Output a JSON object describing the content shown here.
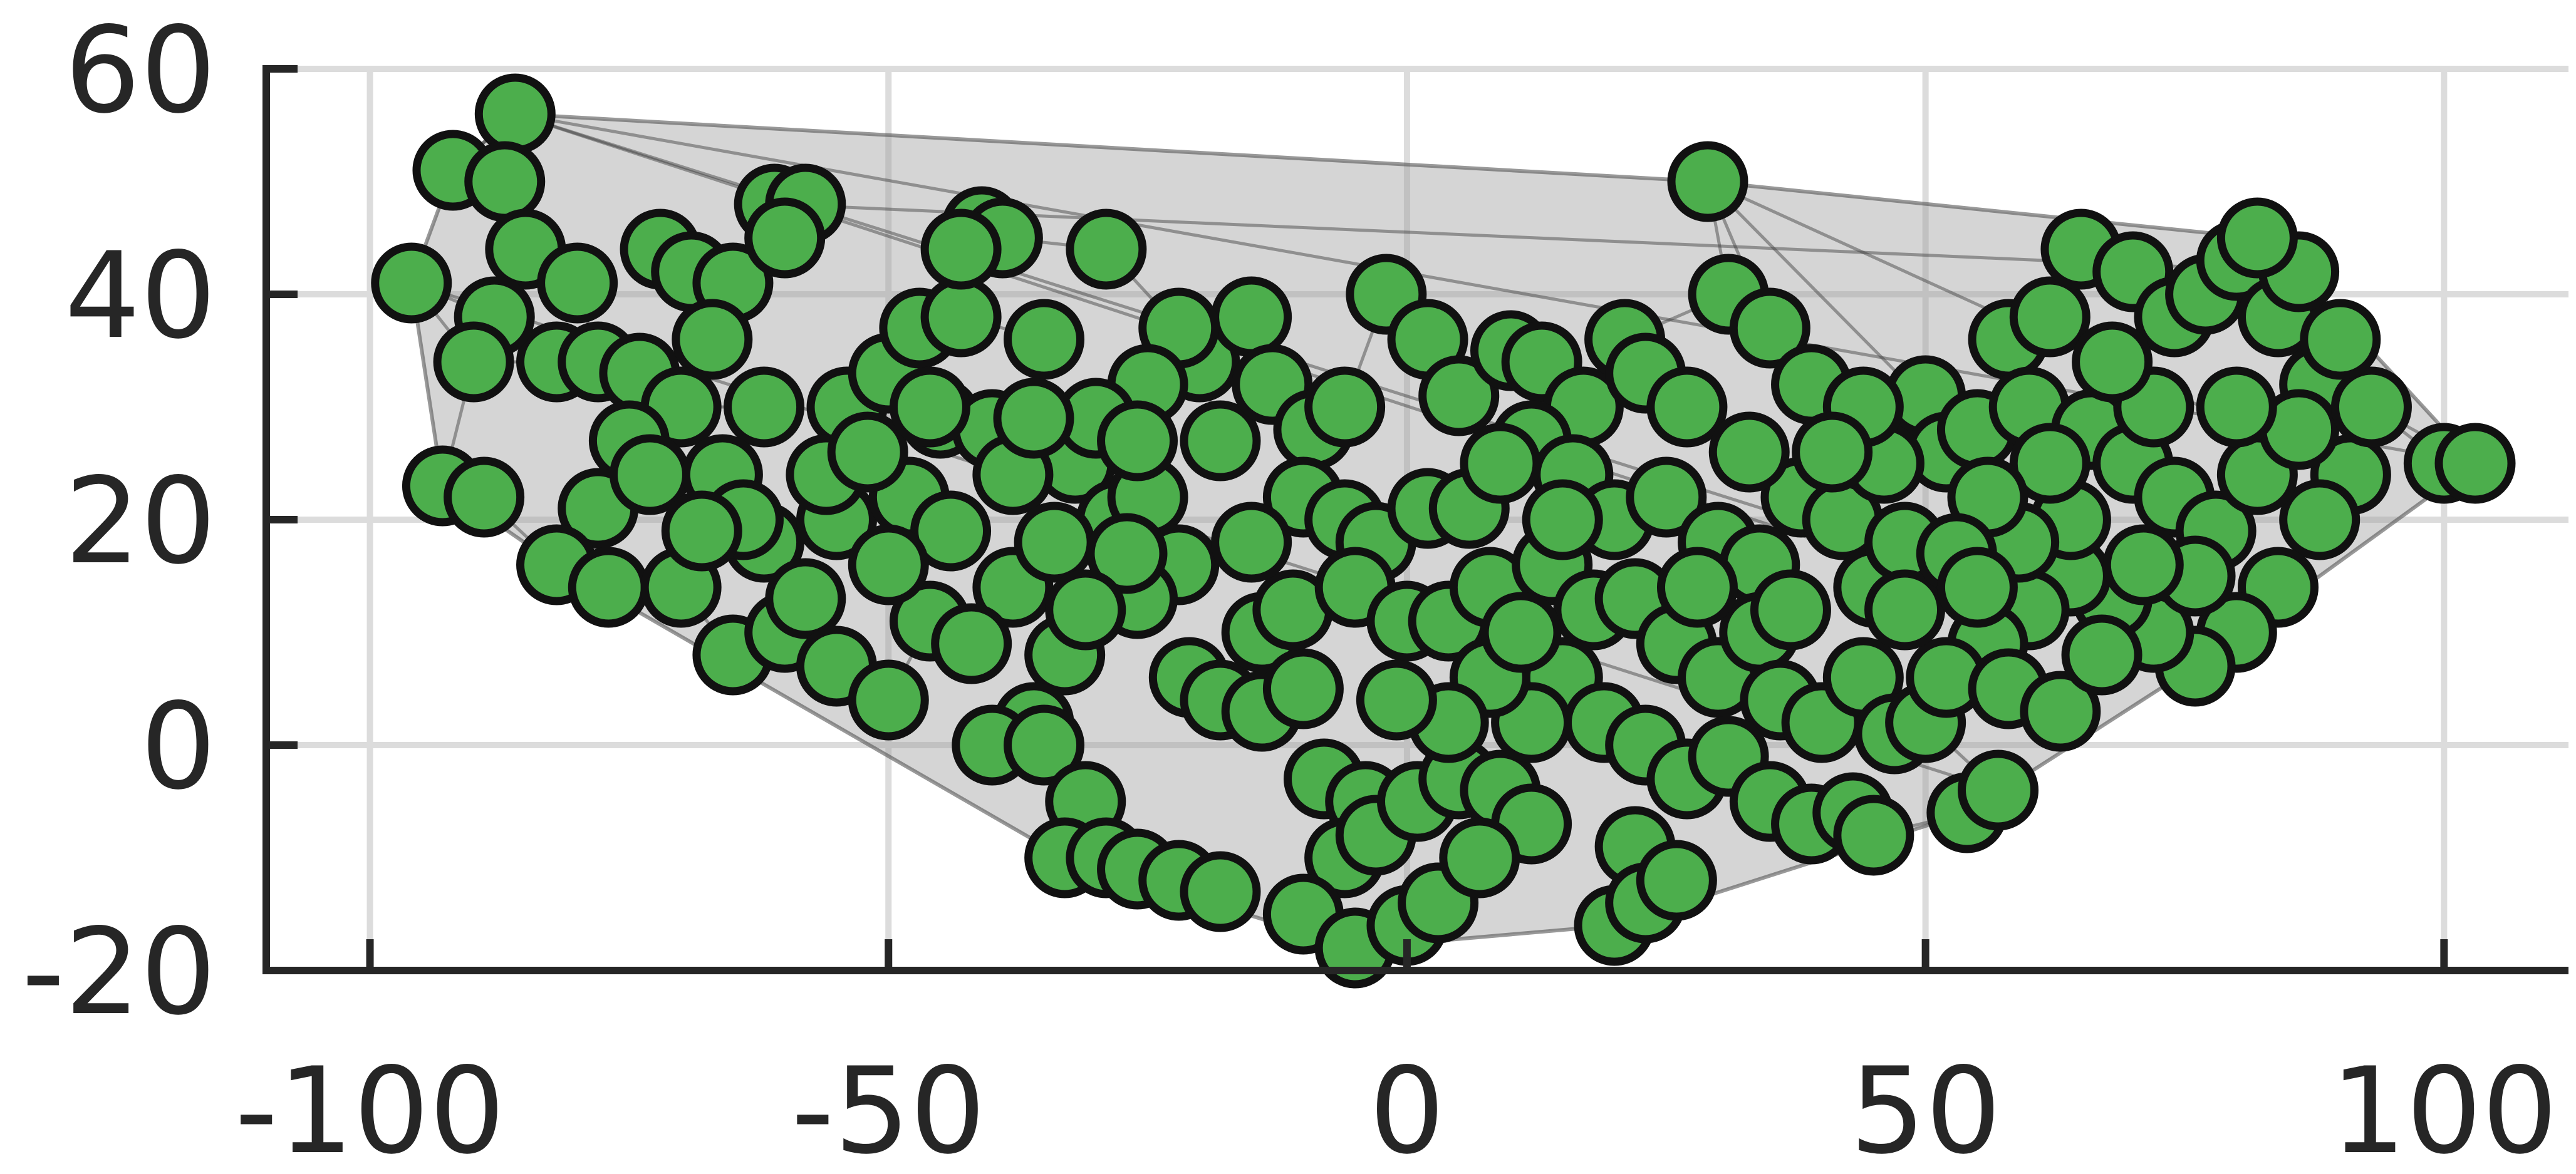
{
  "chart_data": {
    "type": "scatter",
    "title": "",
    "xlabel": "",
    "ylabel": "",
    "xlim": [
      -110,
      112
    ],
    "ylim": [
      -20,
      60
    ],
    "x_ticks": [
      -100,
      -50,
      0,
      50,
      100
    ],
    "y_ticks": [
      -20,
      0,
      20,
      40,
      60
    ],
    "x_tick_labels": [
      "-100",
      "-50",
      "0",
      "50",
      "100"
    ],
    "y_tick_labels": [
      "-20",
      "0",
      "20",
      "40",
      "60"
    ],
    "grid": true,
    "colors": {
      "point_fill": "#4cae4c",
      "point_stroke": "#111111",
      "hull_fill": "#9a9a9a",
      "edge_stroke": "#3a3a3a",
      "grid": "#dcdcdc",
      "axis": "#262626"
    },
    "series": [
      {
        "points": [
          [
            -86,
            56
          ],
          [
            -92,
            51
          ],
          [
            -87,
            50
          ],
          [
            -96,
            41
          ],
          [
            -85,
            44
          ],
          [
            -80,
            41
          ],
          [
            -82,
            34
          ],
          [
            -88,
            38
          ],
          [
            -90,
            34
          ],
          [
            -93,
            23
          ],
          [
            -89,
            22
          ],
          [
            -78,
            34
          ],
          [
            -74,
            33
          ],
          [
            -72,
            44
          ],
          [
            -69,
            42
          ],
          [
            -61,
            48
          ],
          [
            -58,
            48
          ],
          [
            -65,
            41
          ],
          [
            -60,
            45
          ],
          [
            -67,
            36
          ],
          [
            -62,
            30
          ],
          [
            -70,
            30
          ],
          [
            -75,
            27
          ],
          [
            -78,
            21
          ],
          [
            -82,
            16
          ],
          [
            -77,
            14
          ],
          [
            -73,
            24
          ],
          [
            -66,
            24
          ],
          [
            -70,
            14
          ],
          [
            -65,
            8
          ],
          [
            -60,
            10
          ],
          [
            -62,
            18
          ],
          [
            -55,
            20
          ],
          [
            -58,
            13
          ],
          [
            -55,
            7
          ],
          [
            -50,
            4
          ],
          [
            -54,
            30
          ],
          [
            -50,
            33
          ],
          [
            -47,
            37
          ],
          [
            -43,
            38
          ],
          [
            -41,
            46
          ],
          [
            -39,
            45
          ],
          [
            -43,
            44
          ],
          [
            -45,
            29
          ],
          [
            -40,
            28
          ],
          [
            -35,
            36
          ],
          [
            -29,
            44
          ],
          [
            -32,
            25
          ],
          [
            -28,
            20
          ],
          [
            -25,
            22
          ],
          [
            -22,
            16
          ],
          [
            -26,
            13
          ],
          [
            -33,
            8
          ],
          [
            -36,
            2
          ],
          [
            -40,
            0
          ],
          [
            -35,
            0
          ],
          [
            -31,
            -5
          ],
          [
            -33,
            -10
          ],
          [
            -29,
            -10
          ],
          [
            -26,
            -11
          ],
          [
            -22,
            -12
          ],
          [
            -18,
            -13
          ],
          [
            -21,
            6
          ],
          [
            -18,
            4
          ],
          [
            -14,
            10
          ],
          [
            -14,
            3
          ],
          [
            -10,
            5
          ],
          [
            -8,
            -3
          ],
          [
            -4,
            -5
          ],
          [
            -6,
            -10
          ],
          [
            -10,
            -15
          ],
          [
            -5,
            -18
          ],
          [
            0,
            -16
          ],
          [
            3,
            -14
          ],
          [
            -3,
            -8
          ],
          [
            1,
            -5
          ],
          [
            5,
            -3
          ],
          [
            9,
            -4
          ],
          [
            12,
            -7
          ],
          [
            7,
            -10
          ],
          [
            -20,
            34
          ],
          [
            -18,
            27
          ],
          [
            -15,
            38
          ],
          [
            -22,
            37
          ],
          [
            -13,
            32
          ],
          [
            -9,
            28
          ],
          [
            -6,
            30
          ],
          [
            -2,
            40
          ],
          [
            2,
            36
          ],
          [
            5,
            31
          ],
          [
            -10,
            22
          ],
          [
            -6,
            20
          ],
          [
            -3,
            18
          ],
          [
            2,
            21
          ],
          [
            6,
            21
          ],
          [
            -11,
            12
          ],
          [
            -5,
            14
          ],
          [
            0,
            11
          ],
          [
            4,
            11
          ],
          [
            8,
            14
          ],
          [
            -15,
            18
          ],
          [
            -25,
            32
          ],
          [
            -30,
            29
          ],
          [
            -38,
            24
          ],
          [
            -48,
            22
          ],
          [
            -44,
            19
          ],
          [
            -38,
            14
          ],
          [
            -34,
            18
          ],
          [
            -27,
            17
          ],
          [
            -46,
            11
          ],
          [
            -42,
            9
          ],
          [
            -31,
            12
          ],
          [
            -50,
            16
          ],
          [
            -56,
            24
          ],
          [
            -64,
            20
          ],
          [
            -68,
            19
          ],
          [
            -52,
            26
          ],
          [
            -46,
            30
          ],
          [
            -36,
            29
          ],
          [
            -26,
            27
          ],
          [
            10,
            35
          ],
          [
            13,
            34
          ],
          [
            17,
            30
          ],
          [
            21,
            36
          ],
          [
            23,
            33
          ],
          [
            27,
            30
          ],
          [
            31,
            40
          ],
          [
            35,
            37
          ],
          [
            39,
            32
          ],
          [
            29,
            50
          ],
          [
            12,
            27
          ],
          [
            16,
            24
          ],
          [
            20,
            20
          ],
          [
            25,
            22
          ],
          [
            30,
            18
          ],
          [
            34,
            16
          ],
          [
            38,
            22
          ],
          [
            42,
            20
          ],
          [
            45,
            14
          ],
          [
            48,
            18
          ],
          [
            14,
            16
          ],
          [
            18,
            12
          ],
          [
            22,
            13
          ],
          [
            26,
            9
          ],
          [
            30,
            6
          ],
          [
            34,
            10
          ],
          [
            36,
            4
          ],
          [
            40,
            2
          ],
          [
            44,
            6
          ],
          [
            47,
            1
          ],
          [
            15,
            6
          ],
          [
            19,
            2
          ],
          [
            23,
            0
          ],
          [
            27,
            -3
          ],
          [
            31,
            -1
          ],
          [
            35,
            -5
          ],
          [
            39,
            -7
          ],
          [
            43,
            -6
          ],
          [
            45,
            -8
          ],
          [
            22,
            -9
          ],
          [
            20,
            -16
          ],
          [
            23,
            -14
          ],
          [
            26,
            -12
          ],
          [
            12,
            2
          ],
          [
            8,
            6
          ],
          [
            4,
            2
          ],
          [
            -1,
            4
          ],
          [
            11,
            10
          ],
          [
            15,
            20
          ],
          [
            9,
            25
          ],
          [
            50,
            31
          ],
          [
            52,
            26
          ],
          [
            55,
            28
          ],
          [
            58,
            36
          ],
          [
            60,
            30
          ],
          [
            62,
            38
          ],
          [
            65,
            44
          ],
          [
            70,
            42
          ],
          [
            74,
            38
          ],
          [
            77,
            40
          ],
          [
            80,
            43
          ],
          [
            84,
            38
          ],
          [
            88,
            32
          ],
          [
            91,
            24
          ],
          [
            88,
            20
          ],
          [
            84,
            14
          ],
          [
            80,
            10
          ],
          [
            76,
            7
          ],
          [
            72,
            10
          ],
          [
            68,
            13
          ],
          [
            64,
            15
          ],
          [
            60,
            12
          ],
          [
            56,
            9
          ],
          [
            54,
            -6
          ],
          [
            57,
            -4
          ],
          [
            50,
            2
          ],
          [
            52,
            6
          ],
          [
            48,
            12
          ],
          [
            46,
            25
          ],
          [
            44,
            30
          ],
          [
            66,
            28
          ],
          [
            70,
            25
          ],
          [
            74,
            22
          ],
          [
            78,
            19
          ],
          [
            82,
            24
          ],
          [
            86,
            28
          ],
          [
            72,
            30
          ],
          [
            68,
            34
          ],
          [
            64,
            20
          ],
          [
            59,
            18
          ],
          [
            62,
            25
          ],
          [
            76,
            15
          ],
          [
            80,
            30
          ],
          [
            56,
            22
          ],
          [
            53,
            17
          ],
          [
            58,
            5
          ],
          [
            63,
            3
          ],
          [
            67,
            8
          ],
          [
            71,
            16
          ],
          [
            100,
            25
          ],
          [
            103,
            25
          ],
          [
            93,
            30
          ],
          [
            90,
            36
          ],
          [
            86,
            42
          ],
          [
            82,
            45
          ],
          [
            55,
            14
          ],
          [
            41,
            26
          ],
          [
            37,
            12
          ],
          [
            33,
            26
          ],
          [
            28,
            14
          ]
        ]
      }
    ]
  }
}
